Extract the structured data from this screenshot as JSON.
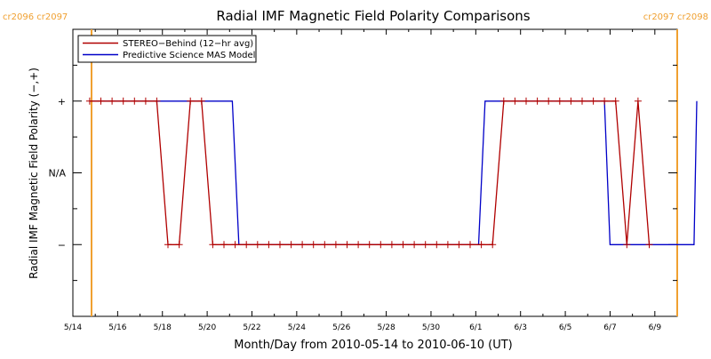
{
  "chart_data": {
    "type": "line",
    "title": "Radial IMF Magnetic Field Polarity Comparisons",
    "xlabel": "Month/Day from 2010-05-14 to 2010-06-10 (UT)",
    "ylabel": "Radial IMF Magnetic Field Polarity (−,+)",
    "xlim": [
      "2010-05-14",
      "2010-06-10"
    ],
    "x_unit": "date (UT)",
    "x_ticks": [
      {
        "date": "2010-05-14",
        "label": "5/14"
      },
      {
        "date": "2010-05-16",
        "label": "5/16"
      },
      {
        "date": "2010-05-18",
        "label": "5/18"
      },
      {
        "date": "2010-05-20",
        "label": "5/20"
      },
      {
        "date": "2010-05-22",
        "label": "5/22"
      },
      {
        "date": "2010-05-24",
        "label": "5/24"
      },
      {
        "date": "2010-05-26",
        "label": "5/26"
      },
      {
        "date": "2010-05-28",
        "label": "5/28"
      },
      {
        "date": "2010-05-30",
        "label": "5/30"
      },
      {
        "date": "2010-06-01",
        "label": "6/1"
      },
      {
        "date": "2010-06-03",
        "label": "6/3"
      },
      {
        "date": "2010-06-05",
        "label": "6/5"
      },
      {
        "date": "2010-06-07",
        "label": "6/7"
      },
      {
        "date": "2010-06-09",
        "label": "6/9"
      }
    ],
    "y_categories": [
      "−",
      "N/A",
      "+"
    ],
    "ylim": [
      -1.0,
      1.0
    ],
    "y_ticks": [
      {
        "value": 0.5,
        "label": "+"
      },
      {
        "value": 0.0,
        "label": "N/A"
      },
      {
        "value": -0.5,
        "label": "−"
      }
    ],
    "legend_position": "top-left",
    "grid": false,
    "carrington_markers": [
      {
        "date": "2010-05-14 20:00",
        "label": "cr2096 cr2097",
        "side": "left",
        "color": "#f0a030"
      },
      {
        "date": "2010-06-10 21:00",
        "label": "cr2097 cr2098",
        "side": "right",
        "color": "#f0a030"
      }
    ],
    "series": [
      {
        "name": "STEREO−Behind (12−hr avg)",
        "color": "#b00000",
        "marker": "plus",
        "points": [
          [
            "2010-05-14 18:00",
            "+"
          ],
          [
            "2010-05-15 06:00",
            "+"
          ],
          [
            "2010-05-15 18:00",
            "+"
          ],
          [
            "2010-05-16 06:00",
            "+"
          ],
          [
            "2010-05-16 18:00",
            "+"
          ],
          [
            "2010-05-17 06:00",
            "+"
          ],
          [
            "2010-05-17 18:00",
            "+"
          ],
          [
            "2010-05-18 06:00",
            "−"
          ],
          [
            "2010-05-18 18:00",
            "−"
          ],
          [
            "2010-05-19 06:00",
            "+"
          ],
          [
            "2010-05-19 18:00",
            "+"
          ],
          [
            "2010-05-20 06:00",
            "−"
          ],
          [
            "2010-05-20 18:00",
            "−"
          ],
          [
            "2010-05-21 06:00",
            "−"
          ],
          [
            "2010-05-21 18:00",
            "−"
          ],
          [
            "2010-05-22 06:00",
            "−"
          ],
          [
            "2010-05-22 18:00",
            "−"
          ],
          [
            "2010-05-23 06:00",
            "−"
          ],
          [
            "2010-05-23 18:00",
            "−"
          ],
          [
            "2010-05-24 06:00",
            "−"
          ],
          [
            "2010-05-24 18:00",
            "−"
          ],
          [
            "2010-05-25 06:00",
            "−"
          ],
          [
            "2010-05-25 18:00",
            "−"
          ],
          [
            "2010-05-26 06:00",
            "−"
          ],
          [
            "2010-05-26 18:00",
            "−"
          ],
          [
            "2010-05-27 06:00",
            "−"
          ],
          [
            "2010-05-27 18:00",
            "−"
          ],
          [
            "2010-05-28 06:00",
            "−"
          ],
          [
            "2010-05-28 18:00",
            "−"
          ],
          [
            "2010-05-29 06:00",
            "−"
          ],
          [
            "2010-05-29 18:00",
            "−"
          ],
          [
            "2010-05-30 06:00",
            "−"
          ],
          [
            "2010-05-30 18:00",
            "−"
          ],
          [
            "2010-05-31 06:00",
            "−"
          ],
          [
            "2010-05-31 18:00",
            "−"
          ],
          [
            "2010-06-01 06:00",
            "−"
          ],
          [
            "2010-06-01 18:00",
            "−"
          ],
          [
            "2010-06-02 06:00",
            "+"
          ],
          [
            "2010-06-02 18:00",
            "+"
          ],
          [
            "2010-06-03 06:00",
            "+"
          ],
          [
            "2010-06-03 18:00",
            "+"
          ],
          [
            "2010-06-04 06:00",
            "+"
          ],
          [
            "2010-06-04 18:00",
            "+"
          ],
          [
            "2010-06-05 06:00",
            "+"
          ],
          [
            "2010-06-05 18:00",
            "+"
          ],
          [
            "2010-06-06 06:00",
            "+"
          ],
          [
            "2010-06-06 18:00",
            "+"
          ],
          [
            "2010-06-07 06:00",
            "+"
          ],
          [
            "2010-06-07 18:00",
            "−"
          ],
          [
            "2010-06-08 06:00",
            "+"
          ],
          [
            "2010-06-08 18:00",
            "−"
          ]
        ]
      },
      {
        "name": "Predictive Science MAS Model",
        "color": "#0000c8",
        "marker": "none",
        "points": [
          [
            "2010-05-14 20:00",
            "+"
          ],
          [
            "2010-05-21 03:00",
            "+"
          ],
          [
            "2010-05-21 10:00",
            "−"
          ],
          [
            "2010-06-01 03:00",
            "−"
          ],
          [
            "2010-06-01 10:00",
            "+"
          ],
          [
            "2010-06-06 18:00",
            "+"
          ],
          [
            "2010-06-07 00:00",
            "−"
          ],
          [
            "2010-06-10 18:00",
            "−"
          ],
          [
            "2010-06-10 21:00",
            "+"
          ]
        ]
      }
    ]
  }
}
